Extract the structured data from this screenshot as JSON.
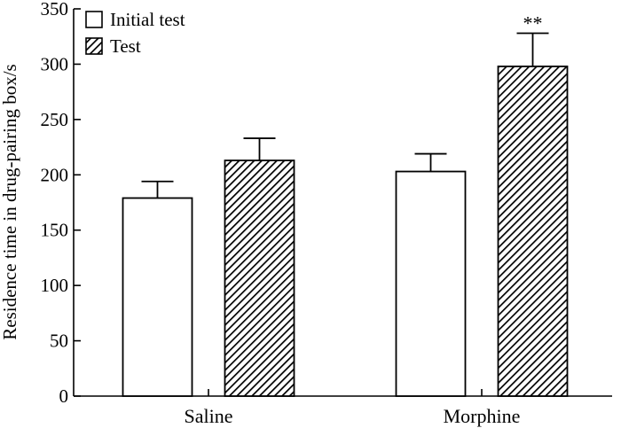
{
  "chart_data": {
    "type": "bar",
    "title": "",
    "xlabel": "",
    "ylabel": "Residence time in drug-pairing box/s",
    "ylim": [
      0,
      350
    ],
    "yticks": [
      0,
      50,
      100,
      150,
      200,
      250,
      300,
      350
    ],
    "categories": [
      "Saline",
      "Morphine"
    ],
    "series": [
      {
        "name": "Initial test",
        "values": [
          179,
          203
        ],
        "errors": [
          15,
          16
        ],
        "fill": "none"
      },
      {
        "name": "Test",
        "values": [
          213,
          298
        ],
        "errors": [
          20,
          30
        ],
        "fill": "hatched"
      }
    ],
    "annotations": [
      {
        "category": "Morphine",
        "series": "Test",
        "text": "**"
      }
    ],
    "legend": {
      "placement": "top-left"
    },
    "colors": {
      "stroke": "#000000",
      "background": "#ffffff"
    }
  }
}
